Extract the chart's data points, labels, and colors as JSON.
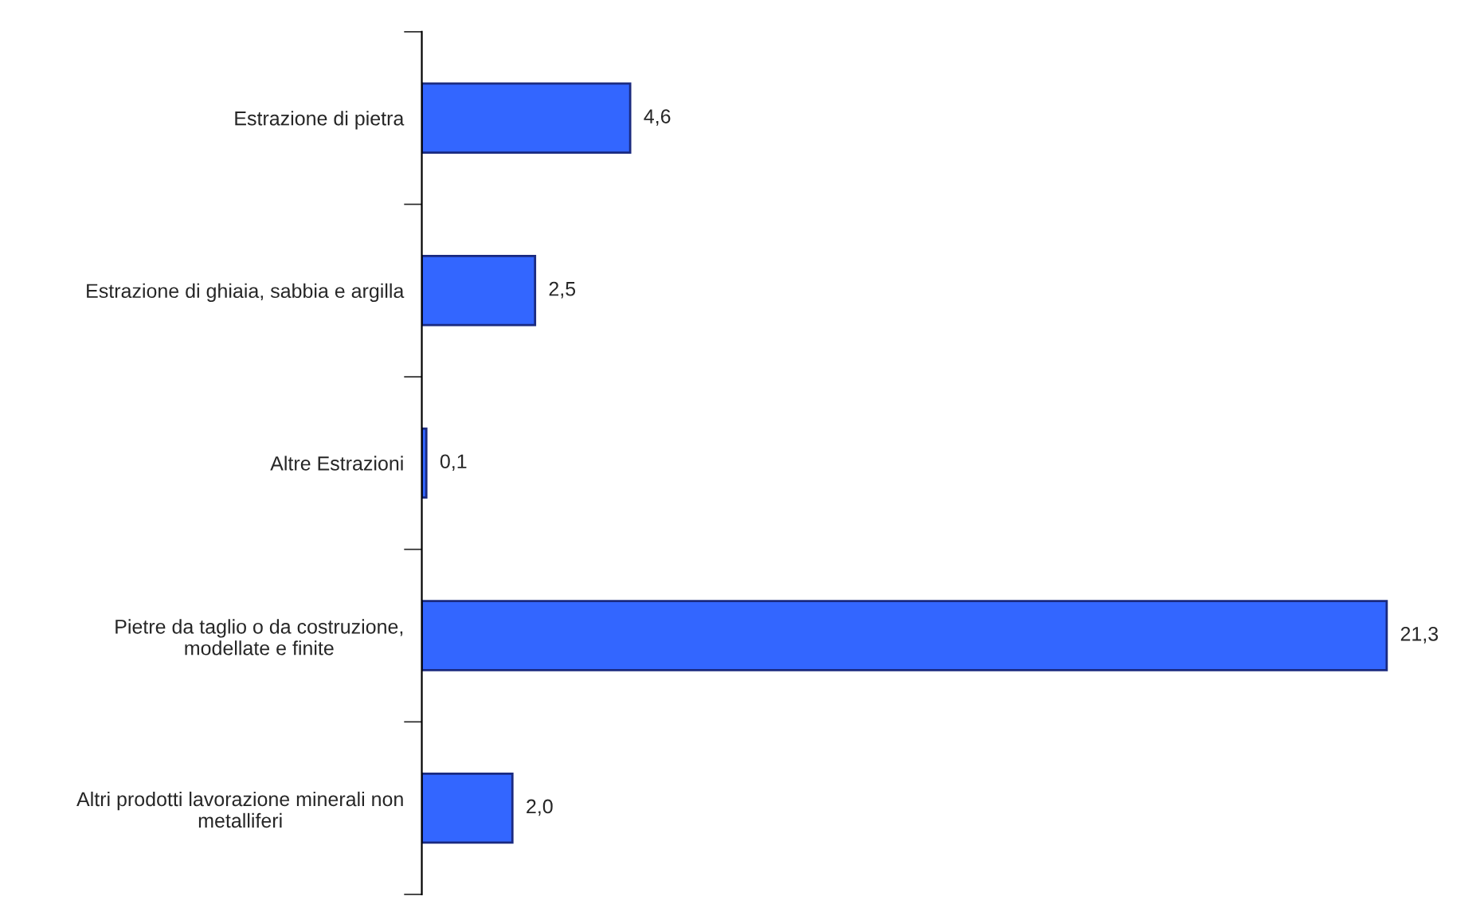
{
  "chart_data": {
    "type": "bar",
    "orientation": "horizontal",
    "categories": [
      "Estrazione di pietra",
      "Estrazione di ghiaia, sabbia e argilla",
      "Altre Estrazioni",
      "Pietre da taglio o da costruzione,\nmodellate e finite",
      "Altri prodotti lavorazione minerali non\nmetalliferi"
    ],
    "values": [
      4.6,
      2.5,
      0.1,
      21.3,
      2.0
    ],
    "value_labels": [
      "4,6",
      "2,5",
      "0,1",
      "21,3",
      "2,0"
    ],
    "color": "#3366ff",
    "grid": false,
    "legend": false,
    "tick_labels": "y"
  }
}
